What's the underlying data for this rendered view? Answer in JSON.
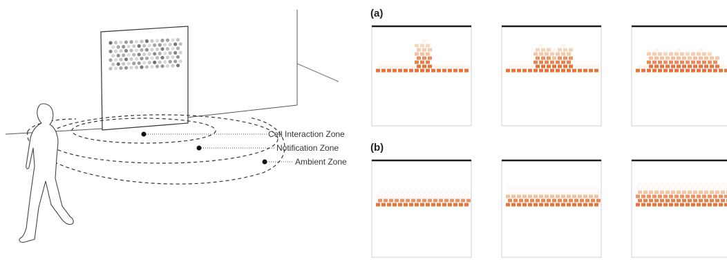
{
  "zones": [
    {
      "id": "cell",
      "label": "Cell Interaction Zone"
    },
    {
      "id": "notification",
      "label": "Notification Zone"
    },
    {
      "id": "ambient",
      "label": "Ambient Zone"
    }
  ],
  "panels": [
    {
      "label": "(a)",
      "pattern": "peaks",
      "frames": [
        {
          "level": 1
        },
        {
          "level": 2
        },
        {
          "level": 3
        }
      ]
    },
    {
      "label": "(b)",
      "pattern": "rows",
      "frames": [
        {
          "level": 1
        },
        {
          "level": 2
        },
        {
          "level": 3
        }
      ]
    }
  ],
  "colors": {
    "cell_strong": "#e2763d",
    "cell_mid": "#f0a978",
    "cell_faint": "#fbe4d5",
    "frame_border": "#1c1c1c",
    "line": "#333333"
  }
}
